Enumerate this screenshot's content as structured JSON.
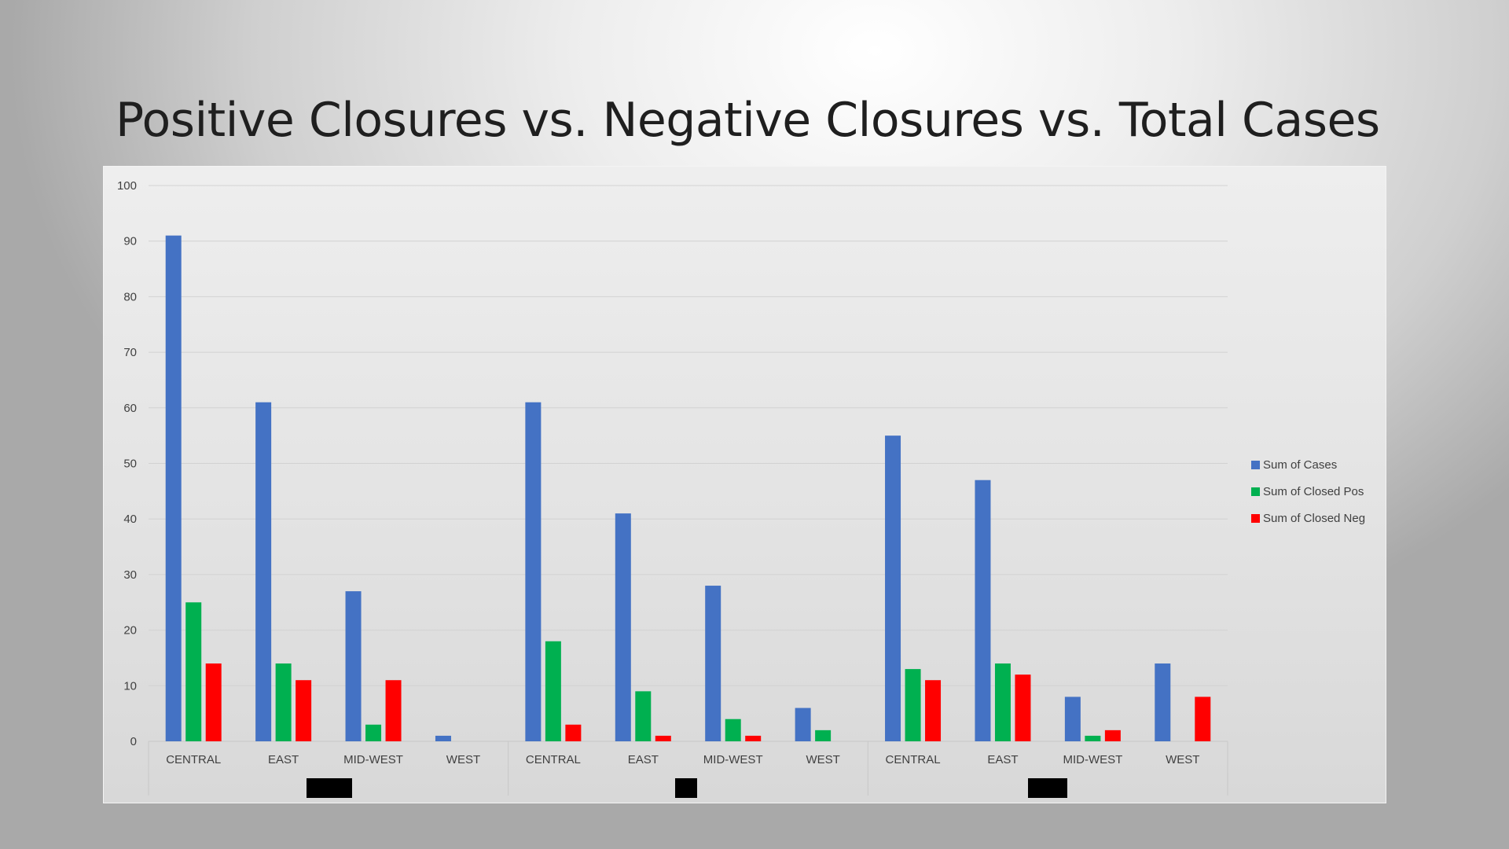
{
  "title": "Positive Closures vs. Negative Closures vs. Total Cases",
  "chart_data": {
    "type": "bar",
    "title": "Positive Closures vs. Negative Closures vs. Total Cases",
    "xlabel": "",
    "ylabel": "",
    "ylim": [
      0,
      100
    ],
    "yticks": [
      0,
      10,
      20,
      30,
      40,
      50,
      60,
      70,
      80,
      90,
      100
    ],
    "grid": true,
    "legend_position": "right",
    "groups": [
      {
        "label": "",
        "categories": [
          "CENTRAL",
          "EAST",
          "MID-WEST",
          "WEST"
        ]
      },
      {
        "label": "",
        "categories": [
          "CENTRAL",
          "EAST",
          "MID-WEST",
          "WEST"
        ]
      },
      {
        "label": "",
        "categories": [
          "CENTRAL",
          "EAST",
          "MID-WEST",
          "WEST"
        ]
      }
    ],
    "categories": [
      "CENTRAL",
      "EAST",
      "MID-WEST",
      "WEST",
      "CENTRAL",
      "EAST",
      "MID-WEST",
      "WEST",
      "CENTRAL",
      "EAST",
      "MID-WEST",
      "WEST"
    ],
    "series": [
      {
        "name": "Sum of Cases",
        "color": "#4472c4",
        "values": [
          91,
          61,
          27,
          1,
          61,
          41,
          28,
          6,
          55,
          47,
          8,
          14
        ]
      },
      {
        "name": "Sum of Closed Pos",
        "color": "#00b050",
        "values": [
          25,
          14,
          3,
          null,
          18,
          9,
          4,
          2,
          13,
          14,
          1,
          null
        ]
      },
      {
        "name": "Sum of Closed Neg",
        "color": "#ff0000",
        "values": [
          14,
          11,
          11,
          null,
          3,
          1,
          1,
          null,
          11,
          12,
          2,
          8
        ]
      }
    ]
  }
}
